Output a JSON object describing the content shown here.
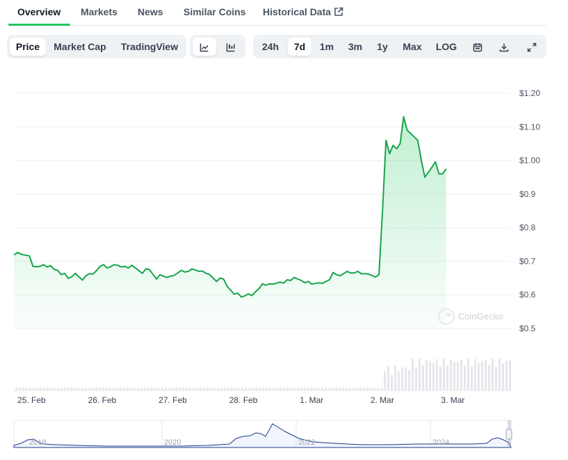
{
  "tabs": {
    "overview": "Overview",
    "markets": "Markets",
    "news": "News",
    "similar": "Similar Coins",
    "historical": "Historical Data"
  },
  "toolbar": {
    "price": "Price",
    "market_cap": "Market Cap",
    "tradingview": "TradingView",
    "ranges": [
      "24h",
      "7d",
      "1m",
      "3m",
      "1y",
      "Max",
      "LOG"
    ],
    "selected_range": "7d",
    "icons": [
      "line-chart-icon",
      "candlestick-icon",
      "calendar-icon",
      "download-icon",
      "expand-icon"
    ]
  },
  "watermark": "CoinGecko",
  "colors": {
    "line": "#16a34a",
    "fill": "#22c55e",
    "volume": "#e5e7eb",
    "accent": "#22c55e"
  },
  "chart_data": {
    "type": "area",
    "y_ticks": [
      "$1.20",
      "$1.10",
      "$1.00",
      "$0.9",
      "$0.8",
      "$0.7",
      "$0.6",
      "$0.5"
    ],
    "y_tick_values": [
      1.2,
      1.1,
      1.0,
      0.9,
      0.8,
      0.7,
      0.6,
      0.5
    ],
    "ylim": [
      0.5,
      1.2
    ],
    "x_ticks": [
      "25. Feb",
      "26. Feb",
      "27. Feb",
      "28. Feb",
      "1. Mar",
      "2. Mar",
      "3. Mar"
    ],
    "x_tick_values": [
      0,
      1,
      2,
      3,
      4,
      5,
      6
    ],
    "xlim": [
      -0.02,
      7.02
    ],
    "grid": true,
    "series": [
      {
        "points": [
          [
            -0.02,
            0.719
          ],
          [
            0.03,
            0.726
          ],
          [
            0.1,
            0.72
          ],
          [
            0.2,
            0.716
          ],
          [
            0.25,
            0.685
          ],
          [
            0.3,
            0.684
          ],
          [
            0.35,
            0.685
          ],
          [
            0.4,
            0.69
          ],
          [
            0.45,
            0.683
          ],
          [
            0.5,
            0.687
          ],
          [
            0.55,
            0.676
          ],
          [
            0.6,
            0.673
          ],
          [
            0.65,
            0.66
          ],
          [
            0.7,
            0.664
          ],
          [
            0.75,
            0.649
          ],
          [
            0.8,
            0.654
          ],
          [
            0.85,
            0.664
          ],
          [
            0.9,
            0.654
          ],
          [
            0.95,
            0.644
          ],
          [
            1.0,
            0.657
          ],
          [
            1.05,
            0.663
          ],
          [
            1.1,
            0.662
          ],
          [
            1.15,
            0.672
          ],
          [
            1.2,
            0.685
          ],
          [
            1.25,
            0.69
          ],
          [
            1.3,
            0.68
          ],
          [
            1.35,
            0.684
          ],
          [
            1.4,
            0.69
          ],
          [
            1.45,
            0.688
          ],
          [
            1.5,
            0.683
          ],
          [
            1.55,
            0.685
          ],
          [
            1.6,
            0.68
          ],
          [
            1.65,
            0.688
          ],
          [
            1.7,
            0.68
          ],
          [
            1.75,
            0.672
          ],
          [
            1.8,
            0.664
          ],
          [
            1.85,
            0.678
          ],
          [
            1.9,
            0.675
          ],
          [
            1.95,
            0.661
          ],
          [
            2.0,
            0.647
          ],
          [
            2.05,
            0.66
          ],
          [
            2.1,
            0.655
          ],
          [
            2.15,
            0.652
          ],
          [
            2.2,
            0.656
          ],
          [
            2.25,
            0.658
          ],
          [
            2.3,
            0.665
          ],
          [
            2.35,
            0.673
          ],
          [
            2.4,
            0.668
          ],
          [
            2.45,
            0.67
          ],
          [
            2.5,
            0.677
          ],
          [
            2.55,
            0.674
          ],
          [
            2.6,
            0.67
          ],
          [
            2.65,
            0.671
          ],
          [
            2.7,
            0.664
          ],
          [
            2.75,
            0.661
          ],
          [
            2.8,
            0.65
          ],
          [
            2.85,
            0.64
          ],
          [
            2.9,
            0.65
          ],
          [
            2.95,
            0.647
          ],
          [
            3.0,
            0.625
          ],
          [
            3.05,
            0.614
          ],
          [
            3.1,
            0.602
          ],
          [
            3.15,
            0.605
          ],
          [
            3.2,
            0.594
          ],
          [
            3.25,
            0.597
          ],
          [
            3.3,
            0.603
          ],
          [
            3.35,
            0.598
          ],
          [
            3.4,
            0.609
          ],
          [
            3.45,
            0.618
          ],
          [
            3.5,
            0.633
          ],
          [
            3.55,
            0.629
          ],
          [
            3.6,
            0.633
          ],
          [
            3.65,
            0.632
          ],
          [
            3.7,
            0.635
          ],
          [
            3.75,
            0.638
          ],
          [
            3.8,
            0.635
          ],
          [
            3.85,
            0.645
          ],
          [
            3.9,
            0.643
          ],
          [
            3.95,
            0.652
          ],
          [
            4.0,
            0.647
          ],
          [
            4.05,
            0.643
          ],
          [
            4.1,
            0.636
          ],
          [
            4.15,
            0.64
          ],
          [
            4.2,
            0.632
          ],
          [
            4.25,
            0.634
          ],
          [
            4.3,
            0.636
          ],
          [
            4.35,
            0.634
          ],
          [
            4.4,
            0.64
          ],
          [
            4.45,
            0.645
          ],
          [
            4.5,
            0.667
          ],
          [
            4.55,
            0.66
          ],
          [
            4.6,
            0.657
          ],
          [
            4.65,
            0.663
          ],
          [
            4.7,
            0.67
          ],
          [
            4.75,
            0.665
          ],
          [
            4.8,
            0.665
          ],
          [
            4.85,
            0.67
          ],
          [
            4.9,
            0.663
          ],
          [
            4.95,
            0.663
          ],
          [
            5.0,
            0.662
          ],
          [
            5.05,
            0.658
          ],
          [
            5.1,
            0.653
          ],
          [
            5.15,
            0.66
          ],
          [
            5.2,
            0.85
          ],
          [
            5.25,
            1.06
          ],
          [
            5.3,
            1.02
          ],
          [
            5.35,
            1.045
          ],
          [
            5.4,
            1.035
          ],
          [
            5.45,
            1.05
          ],
          [
            5.5,
            1.13
          ],
          [
            5.55,
            1.09
          ],
          [
            5.6,
            1.08
          ],
          [
            5.65,
            1.07
          ],
          [
            5.7,
            1.06
          ],
          [
            5.75,
            1.0
          ],
          [
            5.8,
            0.95
          ],
          [
            5.85,
            0.965
          ],
          [
            5.9,
            0.98
          ],
          [
            5.95,
            0.996
          ],
          [
            6.0,
            0.96
          ],
          [
            6.05,
            0.96
          ],
          [
            6.1,
            0.975
          ]
        ]
      }
    ],
    "volume_bars_x_range": [
      -0.02,
      7.02
    ],
    "navigator": {
      "x_ticks": [
        "2018",
        "2020",
        "2022",
        "2024"
      ]
    }
  }
}
